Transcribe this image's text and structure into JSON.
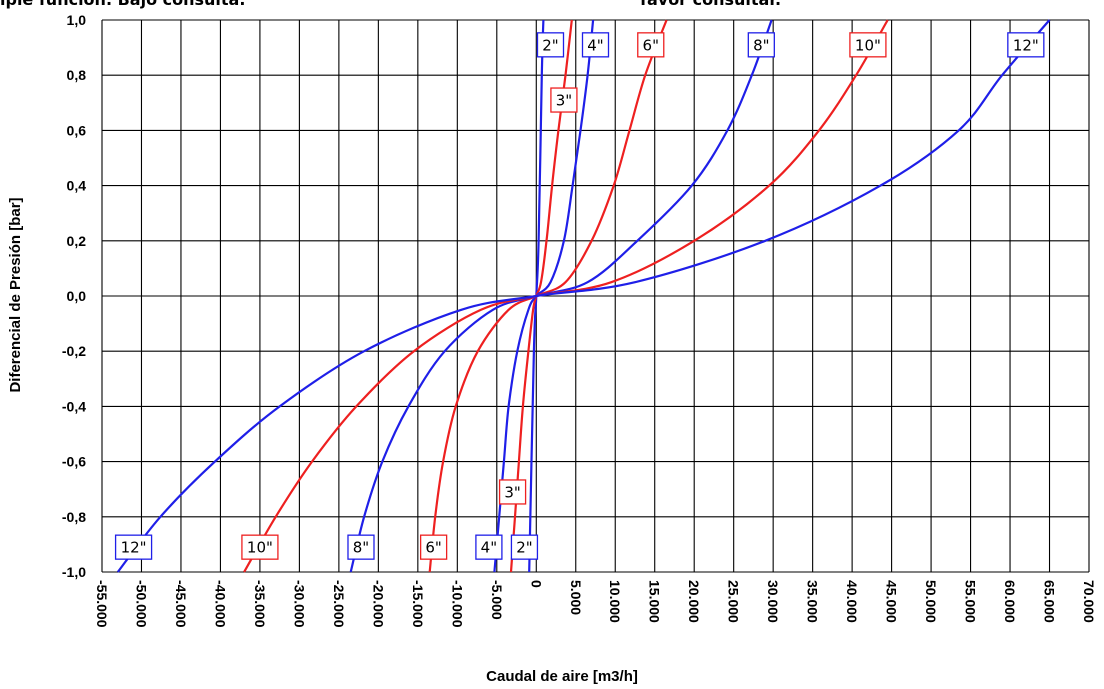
{
  "header": {
    "left_fragment": "iple función. Bajo consulta.",
    "right_fragment": "favor consultar."
  },
  "chart_data": {
    "type": "line",
    "xlabel": "Caudal de aire [m3/h]",
    "ylabel": "Diferencial de Presión [bar]",
    "xlim": [
      -55000,
      70000
    ],
    "ylim": [
      -1.0,
      1.0
    ],
    "grid": true,
    "x_ticks": [
      "-55.000",
      "-50.000",
      "-45.000",
      "-40.000",
      "-35.000",
      "-30.000",
      "-25.000",
      "-20.000",
      "-15.000",
      "-10.000",
      "-5.000",
      "0",
      "5.000",
      "10.000",
      "15.000",
      "20.000",
      "25.000",
      "30.000",
      "35.000",
      "40.000",
      "45.000",
      "50.000",
      "55.000",
      "60.000",
      "65.000",
      "70.000"
    ],
    "y_ticks": [
      "1,0",
      "0,8",
      "0,6",
      "0,4",
      "0,2",
      "0,0",
      "-0,2",
      "-0,4",
      "-0,6",
      "-0,8",
      "-1,0"
    ],
    "colors": {
      "blue": "#1f1fe8",
      "red": "#ee2020",
      "grid": "#000000"
    },
    "series": [
      {
        "name": "2\"",
        "color": "blue",
        "x": [
          -900,
          -300,
          0,
          300,
          700,
          900
        ],
        "y": [
          -1.0,
          -0.2,
          0.0,
          0.2,
          0.8,
          1.0
        ]
      },
      {
        "name": "3\"",
        "color": "red",
        "x": [
          -3200,
          -2700,
          -2200,
          -1700,
          -1000,
          -400,
          0,
          600,
          1300,
          2000,
          2800,
          3700,
          4500
        ],
        "y": [
          -1.0,
          -0.8,
          -0.6,
          -0.4,
          -0.2,
          -0.05,
          0.0,
          0.05,
          0.2,
          0.4,
          0.6,
          0.8,
          1.0
        ]
      },
      {
        "name": "4\"",
        "color": "blue",
        "x": [
          -5300,
          -4700,
          -4100,
          -3500,
          -2400,
          -1000,
          0,
          1800,
          3500,
          4600,
          5600,
          6500,
          7200
        ],
        "y": [
          -1.0,
          -0.8,
          -0.6,
          -0.4,
          -0.2,
          -0.05,
          0.0,
          0.05,
          0.2,
          0.4,
          0.6,
          0.8,
          1.0
        ]
      },
      {
        "name": "6\"",
        "color": "red",
        "x": [
          -13500,
          -12800,
          -11800,
          -10200,
          -7400,
          -3500,
          0,
          3700,
          7000,
          9800,
          11800,
          13800,
          16500
        ],
        "y": [
          -1.0,
          -0.8,
          -0.6,
          -0.4,
          -0.2,
          -0.05,
          0.0,
          0.05,
          0.2,
          0.4,
          0.6,
          0.8,
          1.0
        ]
      },
      {
        "name": "8\"",
        "color": "blue",
        "x": [
          -23500,
          -21800,
          -19500,
          -16200,
          -11600,
          -5500,
          0,
          6500,
          12800,
          19700,
          24200,
          27300,
          29800
        ],
        "y": [
          -1.0,
          -0.8,
          -0.6,
          -0.4,
          -0.2,
          -0.05,
          0.0,
          0.05,
          0.2,
          0.4,
          0.6,
          0.8,
          1.0
        ]
      },
      {
        "name": "10\"",
        "color": "red",
        "x": [
          -37000,
          -33000,
          -28400,
          -22800,
          -15500,
          -7000,
          0,
          9500,
          20000,
          29500,
          35800,
          40500,
          44500
        ],
        "y": [
          -1.0,
          -0.8,
          -0.6,
          -0.4,
          -0.2,
          -0.05,
          0.0,
          0.05,
          0.2,
          0.4,
          0.6,
          0.8,
          1.0
        ]
      },
      {
        "name": "12\"",
        "color": "blue",
        "x": [
          -53000,
          -47600,
          -40700,
          -32500,
          -21800,
          -9500,
          0,
          12500,
          29000,
          43600,
          53500,
          59000,
          65000
        ],
        "y": [
          -1.0,
          -0.8,
          -0.6,
          -0.4,
          -0.2,
          -0.05,
          0.0,
          0.05,
          0.2,
          0.4,
          0.6,
          0.8,
          1.0
        ]
      }
    ],
    "annotations": [
      {
        "text": "2\"",
        "color": "blue",
        "x": 1800,
        "y": 0.91
      },
      {
        "text": "4\"",
        "color": "blue",
        "x": 7500,
        "y": 0.91
      },
      {
        "text": "6\"",
        "color": "red",
        "x": 14500,
        "y": 0.91
      },
      {
        "text": "8\"",
        "color": "blue",
        "x": 28500,
        "y": 0.91
      },
      {
        "text": "10\"",
        "color": "red",
        "x": 42000,
        "y": 0.91
      },
      {
        "text": "12\"",
        "color": "blue",
        "x": 62000,
        "y": 0.91
      },
      {
        "text": "3\"",
        "color": "red",
        "x": 3500,
        "y": 0.71
      },
      {
        "text": "12\"",
        "color": "blue",
        "x": -51000,
        "y": -0.91
      },
      {
        "text": "10\"",
        "color": "red",
        "x": -35000,
        "y": -0.91
      },
      {
        "text": "8\"",
        "color": "blue",
        "x": -22200,
        "y": -0.91
      },
      {
        "text": "6\"",
        "color": "red",
        "x": -13000,
        "y": -0.91
      },
      {
        "text": "4\"",
        "color": "blue",
        "x": -6000,
        "y": -0.91
      },
      {
        "text": "2\"",
        "color": "blue",
        "x": -1500,
        "y": -0.91
      },
      {
        "text": "3\"",
        "color": "red",
        "x": -3000,
        "y": -0.71
      }
    ]
  }
}
